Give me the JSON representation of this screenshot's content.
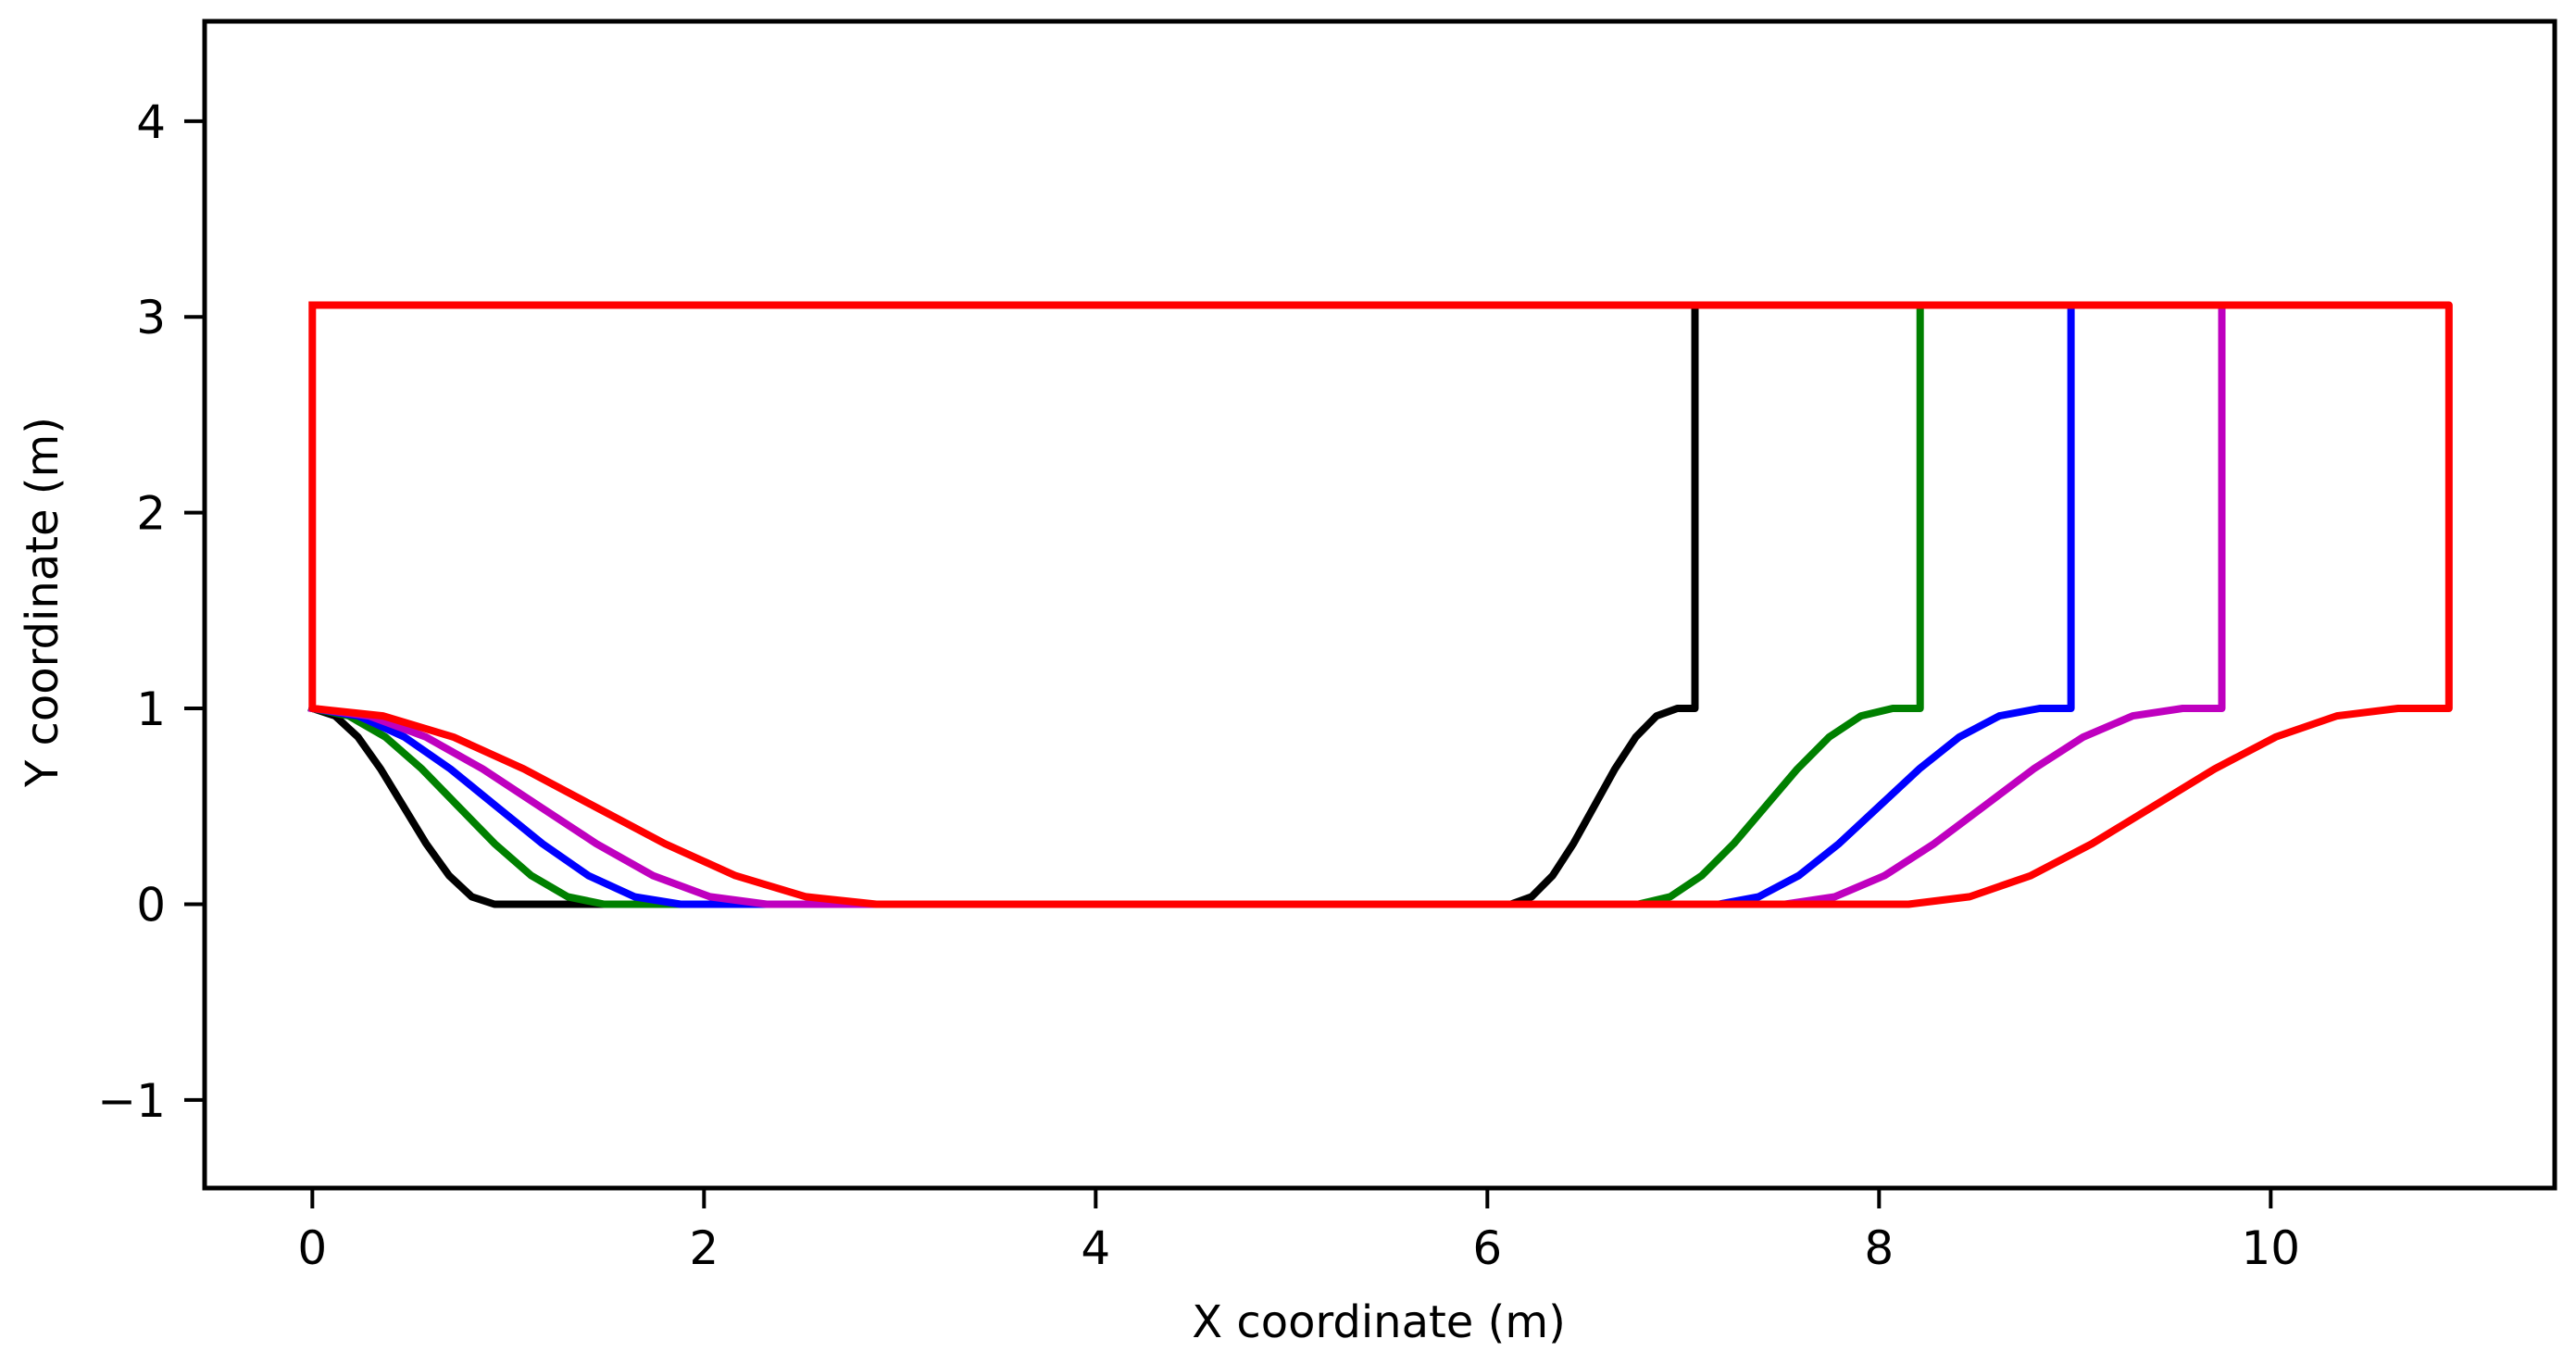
{
  "chart_data": {
    "type": "line",
    "title": "",
    "xlabel": "X coordinate (m)",
    "ylabel": "Y coordinate (m)",
    "xlim": [
      -0.55,
      11.45
    ],
    "ylim": [
      -1.45,
      4.51
    ],
    "grid": false,
    "legend": null,
    "aspect": "equal",
    "xticks": [
      {
        "value": 0,
        "label": "0"
      },
      {
        "value": 2,
        "label": "2"
      },
      {
        "value": 4,
        "label": "4"
      },
      {
        "value": 6,
        "label": "6"
      },
      {
        "value": 8,
        "label": "8"
      },
      {
        "value": 10,
        "label": "10"
      }
    ],
    "yticks": [
      {
        "value": -1,
        "label": "−1"
      },
      {
        "value": 0,
        "label": "0"
      },
      {
        "value": 1,
        "label": "1"
      },
      {
        "value": 2,
        "label": "2"
      },
      {
        "value": 3,
        "label": "3"
      },
      {
        "value": 4,
        "label": "4"
      }
    ],
    "series": [
      {
        "name": "black-profile",
        "color": "#000000",
        "x": [
          7.06,
          7.06,
          6.97,
          6.864,
          6.758,
          6.651,
          6.545,
          6.439,
          6.333,
          6.226,
          6.12,
          0.93,
          0.814,
          0.698,
          0.581,
          0.465,
          0.349,
          0.233,
          0.116,
          0.0
        ],
        "y": [
          3.06,
          1.0,
          1.0,
          0.962,
          0.854,
          0.691,
          0.5,
          0.309,
          0.146,
          0.038,
          0.0,
          0.0,
          0.038,
          0.146,
          0.309,
          0.5,
          0.691,
          0.854,
          0.962,
          1.0
        ]
      },
      {
        "name": "green-profile",
        "color": "#008000",
        "x": [
          8.21,
          8.21,
          8.07,
          7.908,
          7.745,
          7.583,
          7.42,
          7.258,
          7.095,
          6.933,
          6.77,
          1.49,
          1.304,
          1.118,
          0.931,
          0.745,
          0.559,
          0.373,
          0.186,
          0.0
        ],
        "y": [
          3.06,
          1.0,
          1.0,
          0.962,
          0.854,
          0.691,
          0.5,
          0.309,
          0.146,
          0.038,
          0.0,
          0.0,
          0.038,
          0.146,
          0.309,
          0.5,
          0.691,
          0.854,
          0.962,
          1.0
        ]
      },
      {
        "name": "blue-profile",
        "color": "#0000ff",
        "x": [
          8.98,
          8.98,
          8.82,
          8.615,
          8.41,
          8.205,
          8.0,
          7.795,
          7.59,
          7.385,
          7.18,
          1.88,
          1.645,
          1.41,
          1.175,
          0.94,
          0.705,
          0.47,
          0.235,
          0.0
        ],
        "y": [
          3.06,
          1.0,
          1.0,
          0.962,
          0.854,
          0.691,
          0.5,
          0.309,
          0.146,
          0.038,
          0.0,
          0.0,
          0.038,
          0.146,
          0.309,
          0.5,
          0.691,
          0.854,
          0.962,
          1.0
        ]
      },
      {
        "name": "magenta-profile",
        "color": "#bf00bf",
        "x": [
          9.75,
          9.75,
          9.55,
          9.296,
          9.043,
          8.789,
          8.535,
          8.281,
          8.028,
          7.774,
          7.52,
          2.32,
          2.03,
          1.74,
          1.45,
          1.16,
          0.87,
          0.58,
          0.29,
          0.0
        ],
        "y": [
          3.06,
          1.0,
          1.0,
          0.962,
          0.854,
          0.691,
          0.5,
          0.309,
          0.146,
          0.038,
          0.0,
          0.0,
          0.038,
          0.146,
          0.309,
          0.5,
          0.691,
          0.854,
          0.962,
          1.0
        ]
      },
      {
        "name": "red-profile",
        "color": "#ff0000",
        "x": [
          0.0,
          0.0,
          0.36,
          0.72,
          1.08,
          1.44,
          1.8,
          2.16,
          2.52,
          2.88,
          8.15,
          8.463,
          8.775,
          9.088,
          9.4,
          9.713,
          10.025,
          10.338,
          10.65,
          10.91,
          10.91,
          0.0
        ],
        "y": [
          3.06,
          1.0,
          0.962,
          0.854,
          0.691,
          0.5,
          0.309,
          0.146,
          0.038,
          0.0,
          0.0,
          0.038,
          0.146,
          0.309,
          0.5,
          0.691,
          0.854,
          0.962,
          1.0,
          1.0,
          3.06,
          3.06
        ]
      }
    ]
  }
}
